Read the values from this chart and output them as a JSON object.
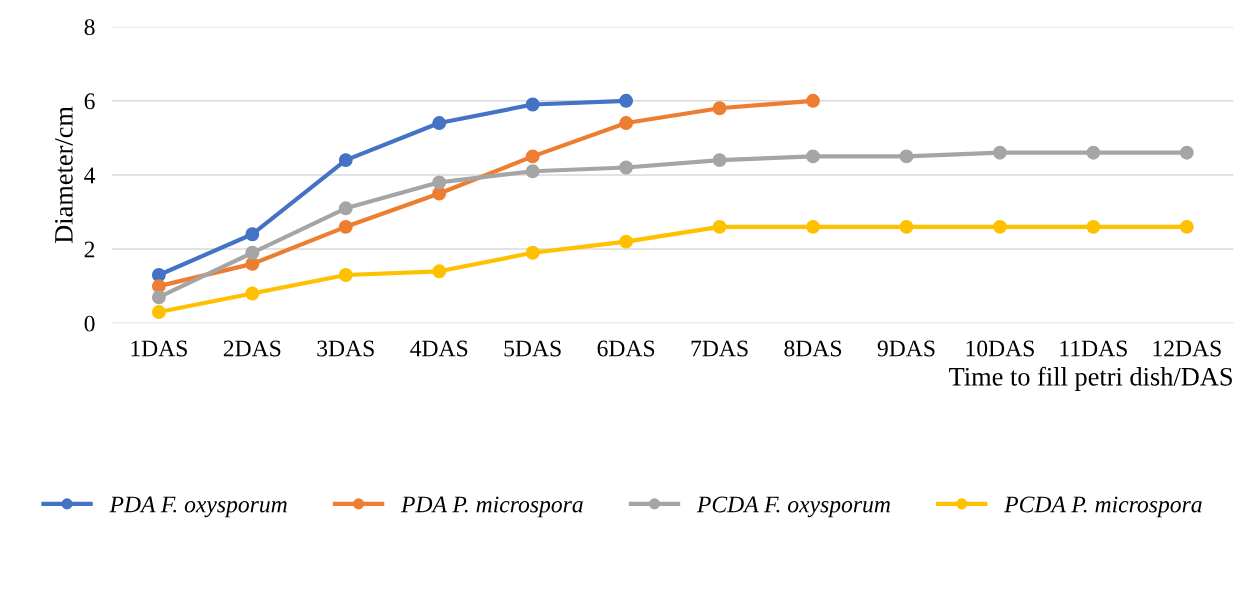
{
  "chart_data": {
    "type": "line",
    "xlabel": "Time to fill petri dish/DAS",
    "ylabel": "Diameter/cm",
    "categories": [
      "1DAS",
      "2DAS",
      "3DAS",
      "4DAS",
      "5DAS",
      "6DAS",
      "7DAS",
      "8DAS",
      "9DAS",
      "10DAS",
      "11DAS",
      "12DAS"
    ],
    "series": [
      {
        "name": "PDA F. oxysporum",
        "color": "#4472c4",
        "values": [
          1.3,
          2.4,
          4.4,
          5.4,
          5.9,
          6.0,
          null,
          null,
          null,
          null,
          null,
          null
        ]
      },
      {
        "name": "PDA P. microspora",
        "color": "#ed7d31",
        "values": [
          1.0,
          1.6,
          2.6,
          3.5,
          4.5,
          5.4,
          5.8,
          6.0,
          null,
          null,
          null,
          null
        ]
      },
      {
        "name": "PCDA F. oxysporum",
        "color": "#a5a5a5",
        "values": [
          0.7,
          1.9,
          3.1,
          3.8,
          4.1,
          4.2,
          4.4,
          4.5,
          4.5,
          4.6,
          4.6,
          4.6
        ]
      },
      {
        "name": "PCDA P. microspora",
        "color": "#ffc000",
        "values": [
          0.3,
          0.8,
          1.3,
          1.4,
          1.9,
          2.2,
          2.6,
          2.6,
          2.6,
          2.6,
          2.6,
          2.6
        ]
      }
    ],
    "ylim": [
      0,
      8
    ],
    "yticks": [
      0,
      2,
      4,
      6,
      8
    ],
    "grid": "y",
    "legend": "bottom",
    "marker": "circle",
    "line_style": "solid"
  }
}
